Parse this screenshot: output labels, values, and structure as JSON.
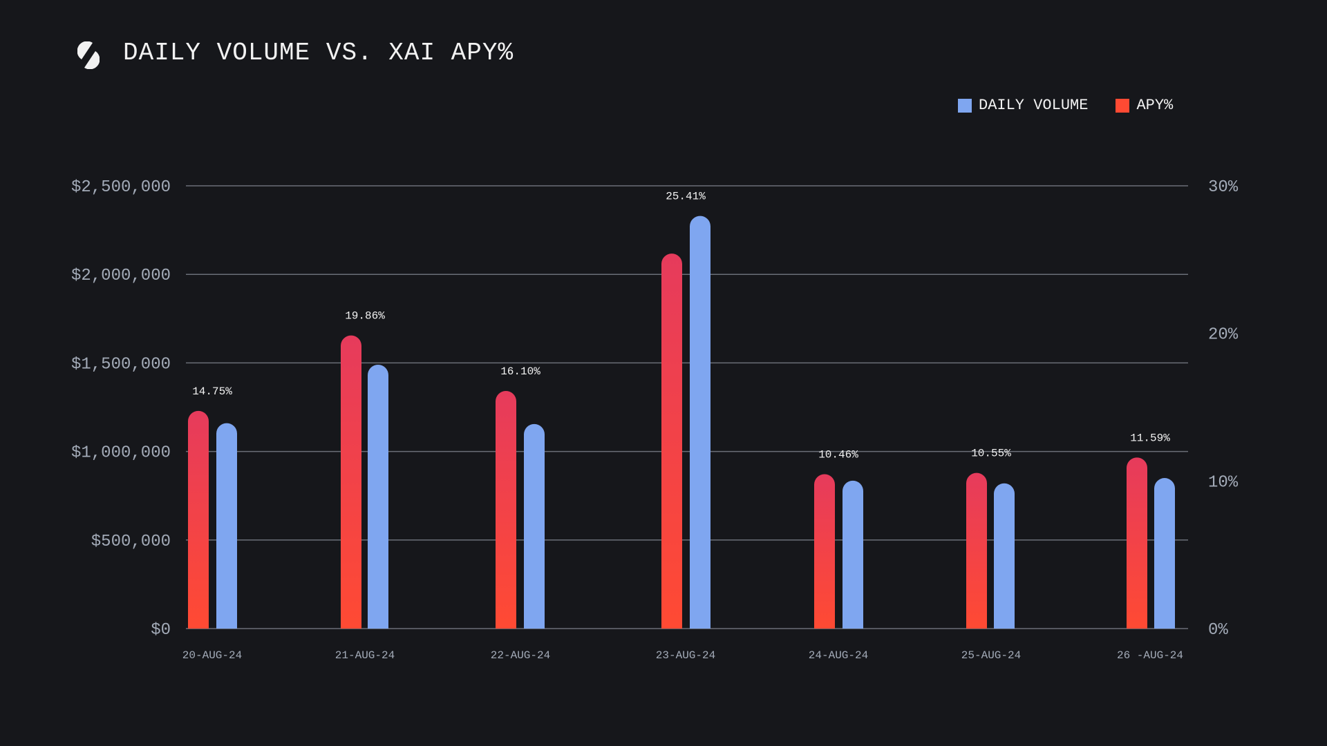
{
  "header": {
    "title": "DAILY VOLUME VS. XAI APY%",
    "logo_icon": "slashed-s-logo"
  },
  "colors": {
    "background": "#16171b",
    "volume": "#7fa6f0",
    "apy_top": "#e63b5c",
    "apy_bottom": "#ff4a33",
    "grid": "#6b6f78",
    "tick": "#a3abb8"
  },
  "chart_data": {
    "type": "bar",
    "title": "DAILY VOLUME VS. XAI APY%",
    "categories": [
      "20-AUG-24",
      "21-AUG-24",
      "22-AUG-24",
      "23-AUG-24",
      "24-AUG-24",
      "25-AUG-24",
      "26 -AUG-24"
    ],
    "series": [
      {
        "name": "APY%",
        "axis": "right",
        "values": [
          14.75,
          19.86,
          16.1,
          25.41,
          10.46,
          10.55,
          11.59
        ],
        "labels": [
          "14.75%",
          "19.86%",
          "16.10%",
          "25.41%",
          "10.46%",
          "10.55%",
          "11.59%"
        ]
      },
      {
        "name": "DAILY VOLUME",
        "axis": "left",
        "values": [
          1160000,
          1490000,
          1155000,
          2330000,
          835000,
          820000,
          850000
        ]
      }
    ],
    "left_axis": {
      "ylim": [
        0,
        2500000
      ],
      "ticks": [
        0,
        500000,
        1000000,
        1500000,
        2000000,
        2500000
      ],
      "tick_labels": [
        "$0",
        "$500,000",
        "$1,000,000",
        "$1,500,000",
        "$2,000,000",
        "$2,500,000"
      ]
    },
    "right_axis": {
      "ylim": [
        0,
        30
      ],
      "ticks": [
        0,
        10,
        20,
        30
      ],
      "tick_labels": [
        "0%",
        "10%",
        "20%",
        "30%"
      ]
    },
    "grid": true,
    "legend": {
      "placement": "top-right",
      "entries": [
        "DAILY VOLUME",
        "APY%"
      ]
    }
  }
}
